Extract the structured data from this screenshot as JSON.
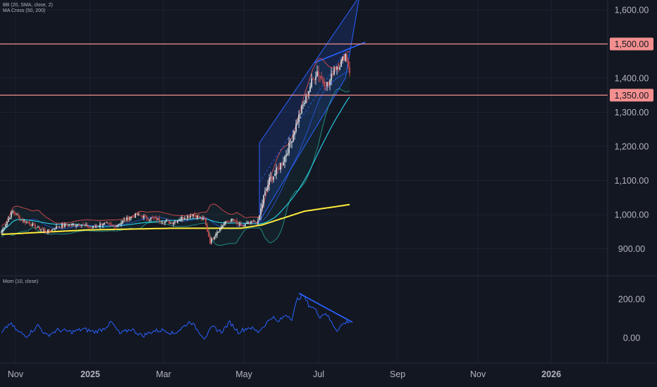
{
  "indicators": {
    "bb": "BB (20, SMA, close, 2)",
    "ma_cross": "MA Cross (50, 200)",
    "mom": "Mom (10, close)"
  },
  "colors": {
    "background": "#131722",
    "grid": "#1e222d",
    "axis_text": "#b2b5be",
    "candle_up": "#ffffff",
    "candle_down": "#ef5350",
    "bb_upper": "#ef5350",
    "bb_lower": "#26a69a",
    "ma50": "#26c6da",
    "ma200": "#ffeb3b",
    "channel": "#2962ff",
    "hline": "#f48f8f",
    "momentum": "#2962ff"
  },
  "chart_data": [
    {
      "type": "candlestick",
      "ylim": [
        850,
        1650
      ],
      "y_ticks": [
        "900.00",
        "1,000.00",
        "1,100.00",
        "1,200.00",
        "1,300.00",
        "1,400.00",
        "1,600.00"
      ],
      "x_ticks": [
        "Nov",
        "2025",
        "Mar",
        "May",
        "Jul",
        "Sep",
        "Nov",
        "2026"
      ],
      "x_tick_index": [
        10,
        63,
        115,
        172,
        225,
        281,
        338,
        390
      ],
      "horizontal_levels": [
        {
          "value": 1500,
          "label": "1,500.00"
        },
        {
          "value": 1350,
          "label": "1,350.00"
        }
      ],
      "price_anchors": [
        [
          0,
          950
        ],
        [
          8,
          1010
        ],
        [
          14,
          985
        ],
        [
          20,
          975
        ],
        [
          26,
          960
        ],
        [
          32,
          950
        ],
        [
          40,
          965
        ],
        [
          48,
          970
        ],
        [
          56,
          972
        ],
        [
          64,
          960
        ],
        [
          72,
          975
        ],
        [
          80,
          965
        ],
        [
          88,
          985
        ],
        [
          96,
          1000
        ],
        [
          104,
          990
        ],
        [
          112,
          985
        ],
        [
          120,
          975
        ],
        [
          128,
          990
        ],
        [
          136,
          1000
        ],
        [
          144,
          985
        ],
        [
          148,
          920
        ],
        [
          152,
          945
        ],
        [
          158,
          975
        ],
        [
          164,
          985
        ],
        [
          170,
          965
        ],
        [
          176,
          975
        ],
        [
          182,
          980
        ],
        [
          186,
          1050
        ],
        [
          190,
          1100
        ],
        [
          194,
          1120
        ],
        [
          200,
          1160
        ],
        [
          204,
          1200
        ],
        [
          208,
          1250
        ],
        [
          212,
          1300
        ],
        [
          216,
          1340
        ],
        [
          220,
          1390
        ],
        [
          224,
          1420
        ],
        [
          228,
          1390
        ],
        [
          232,
          1380
        ],
        [
          236,
          1430
        ],
        [
          240,
          1440
        ],
        [
          244,
          1470
        ],
        [
          247,
          1420
        ]
      ],
      "channel": {
        "lower_start": [
          183,
          980
        ],
        "lower_end": [
          244,
          1400
        ],
        "upper_start": [
          183,
          1210
        ],
        "upper_end": [
          254,
          1640
        ]
      },
      "trendline": {
        "start": [
          222,
          1445
        ],
        "end": [
          258,
          1505
        ]
      },
      "ma200_anchors": [
        [
          0,
          942
        ],
        [
          60,
          955
        ],
        [
          120,
          960
        ],
        [
          170,
          960
        ],
        [
          185,
          970
        ],
        [
          200,
          990
        ],
        [
          215,
          1010
        ],
        [
          248,
          1030
        ]
      ]
    },
    {
      "type": "line",
      "series_role": "momentum",
      "ylim": [
        -100,
        300
      ],
      "y_ticks": [
        "0.00",
        "200.00"
      ],
      "mom_anchors": [
        [
          0,
          20
        ],
        [
          6,
          75
        ],
        [
          12,
          30
        ],
        [
          18,
          10
        ],
        [
          26,
          65
        ],
        [
          32,
          10
        ],
        [
          40,
          40
        ],
        [
          50,
          30
        ],
        [
          58,
          45
        ],
        [
          66,
          30
        ],
        [
          72,
          45
        ],
        [
          78,
          80
        ],
        [
          84,
          20
        ],
        [
          92,
          45
        ],
        [
          100,
          10
        ],
        [
          108,
          35
        ],
        [
          116,
          40
        ],
        [
          122,
          20
        ],
        [
          128,
          50
        ],
        [
          134,
          85
        ],
        [
          138,
          50
        ],
        [
          144,
          0
        ],
        [
          150,
          55
        ],
        [
          156,
          30
        ],
        [
          162,
          80
        ],
        [
          168,
          30
        ],
        [
          176,
          55
        ],
        [
          182,
          30
        ],
        [
          188,
          75
        ],
        [
          192,
          110
        ],
        [
          196,
          80
        ],
        [
          202,
          120
        ],
        [
          206,
          100
        ],
        [
          210,
          200
        ],
        [
          214,
          220
        ],
        [
          218,
          170
        ],
        [
          222,
          150
        ],
        [
          226,
          110
        ],
        [
          230,
          130
        ],
        [
          234,
          80
        ],
        [
          238,
          40
        ],
        [
          242,
          70
        ],
        [
          246,
          85
        ]
      ],
      "trendline": {
        "start": [
          211,
          230
        ],
        "end": [
          249,
          80
        ]
      }
    }
  ]
}
